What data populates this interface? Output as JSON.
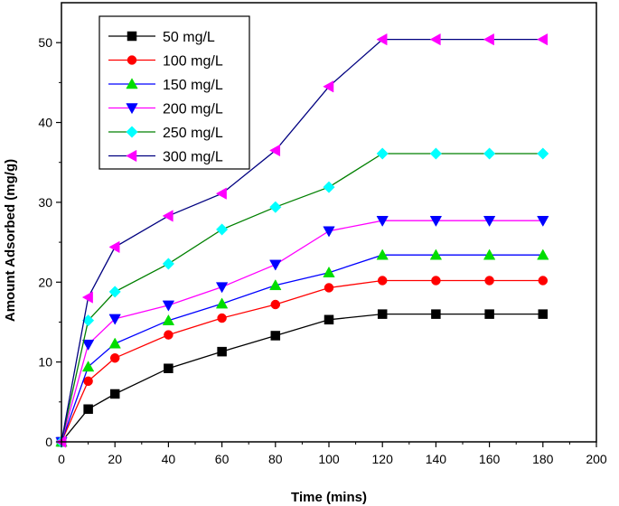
{
  "chart_data": {
    "type": "line",
    "xlabel": "Time (mins)",
    "ylabel": "Amount Adsorbed (mg/g)",
    "xlim": [
      0,
      200
    ],
    "ylim": [
      0,
      55
    ],
    "x_ticks": [
      0,
      20,
      40,
      60,
      80,
      100,
      120,
      140,
      160,
      180,
      200
    ],
    "y_ticks": [
      0,
      10,
      20,
      30,
      40,
      50
    ],
    "grid": false,
    "legend_position": "top-left",
    "x": [
      0,
      10,
      20,
      40,
      60,
      80,
      100,
      120,
      140,
      160,
      180
    ],
    "series": [
      {
        "name": "50 mg/L",
        "color": "#000000",
        "marker": "square",
        "values": [
          0,
          4.1,
          6.0,
          9.2,
          11.3,
          13.3,
          15.3,
          16.0,
          16.0,
          16.0,
          16.0
        ]
      },
      {
        "name": "100 mg/L",
        "color": "#ff0000",
        "marker": "circle",
        "values": [
          0,
          7.6,
          10.5,
          13.4,
          15.5,
          17.2,
          19.3,
          20.2,
          20.2,
          20.2,
          20.2
        ]
      },
      {
        "name": "150 mg/L",
        "color": "#0000ff",
        "marker": "triangle-up",
        "marker_color": "#00dd00",
        "values": [
          0,
          9.4,
          12.3,
          15.2,
          17.3,
          19.6,
          21.2,
          23.4,
          23.4,
          23.4,
          23.4
        ]
      },
      {
        "name": "200 mg/L",
        "color": "#ff00ff",
        "marker": "triangle-down",
        "marker_color": "#0000ff",
        "values": [
          0,
          12.2,
          15.4,
          17.1,
          19.4,
          22.2,
          26.4,
          27.7,
          27.7,
          27.7,
          27.7
        ]
      },
      {
        "name": "250 mg/L",
        "color": "#008000",
        "marker": "diamond",
        "marker_color": "#00ffff",
        "values": [
          0,
          15.2,
          18.8,
          22.3,
          26.6,
          29.4,
          31.9,
          36.1,
          36.1,
          36.1,
          36.1
        ]
      },
      {
        "name": "300 mg/L",
        "color": "#000080",
        "marker": "triangle-left",
        "marker_color": "#ff00ff",
        "values": [
          0,
          18.1,
          24.4,
          28.3,
          31.1,
          36.5,
          44.5,
          50.4,
          50.4,
          50.4,
          50.4
        ]
      }
    ]
  }
}
